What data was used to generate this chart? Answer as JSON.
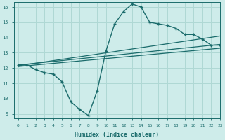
{
  "main_x": [
    0,
    1,
    2,
    3,
    4,
    5,
    6,
    7,
    8,
    9,
    10,
    11,
    12,
    13,
    14,
    15,
    16,
    17,
    18,
    19,
    20,
    21,
    22,
    23
  ],
  "main_y": [
    12.2,
    12.2,
    11.9,
    11.7,
    11.6,
    11.1,
    9.8,
    9.3,
    8.9,
    10.5,
    13.1,
    14.9,
    15.7,
    16.2,
    16.0,
    15.0,
    14.9,
    14.8,
    14.6,
    14.2,
    14.2,
    13.9,
    13.5,
    13.5
  ],
  "line1_x": [
    0,
    23
  ],
  "line1_y": [
    12.2,
    13.55
  ],
  "line2_x": [
    0,
    23
  ],
  "line2_y": [
    12.15,
    14.1
  ],
  "line3_x": [
    0,
    23
  ],
  "line3_y": [
    12.1,
    13.3
  ],
  "color": "#1a6b6b",
  "bg_color": "#ceecea",
  "grid_color": "#afd8d4",
  "xlabel": "Humidex (Indice chaleur)",
  "xlim": [
    -0.5,
    23.0
  ],
  "ylim": [
    8.7,
    16.3
  ],
  "yticks": [
    9,
    10,
    11,
    12,
    13,
    14,
    15,
    16
  ],
  "xticks": [
    0,
    1,
    2,
    3,
    4,
    5,
    6,
    7,
    8,
    9,
    10,
    11,
    12,
    13,
    14,
    15,
    16,
    17,
    18,
    19,
    20,
    21,
    22,
    23
  ]
}
